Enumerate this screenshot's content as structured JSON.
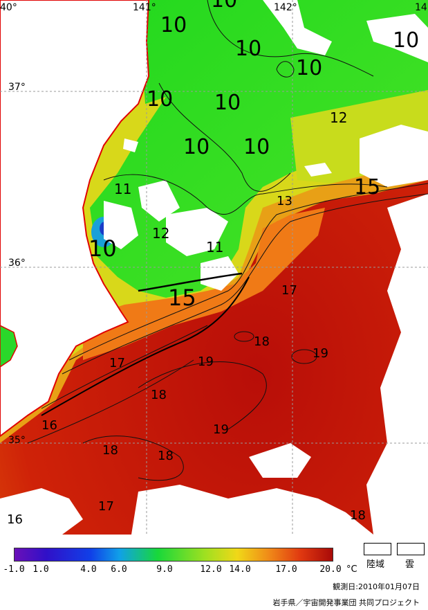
{
  "map": {
    "longitude_labels": [
      "40°",
      "141°",
      "142°",
      "14"
    ],
    "latitude_labels": [
      "37°",
      "36°",
      "35°"
    ],
    "contour_labels": [
      "10",
      "10",
      "10",
      "10",
      "10",
      "10",
      "10",
      "10",
      "10",
      "12",
      "15",
      "13",
      "11",
      "12",
      "11",
      "10",
      "15",
      "17",
      "18",
      "19",
      "19",
      "17",
      "18",
      "19",
      "16",
      "18",
      "18",
      "17",
      "16",
      "18"
    ],
    "colors": {
      "cold": "#1aa7e0",
      "cool": "#2ad82a",
      "mild": "#a8e21a",
      "warm_yellow": "#f0d21a",
      "orange": "#f08a1a",
      "warm_red": "#d8280a",
      "hot": "#b0100a",
      "land": "#ffffff",
      "cloud": "#ffffff",
      "coast": "#e00000",
      "grid": "#9a9a9a"
    }
  },
  "legend": {
    "ticks": [
      "-1.0",
      "1.0",
      "4.0",
      "6.0",
      "9.0",
      "12.0",
      "14.0",
      "17.0",
      "20.0"
    ],
    "unit": "°C",
    "land_label": "陸域",
    "cloud_label": "雲",
    "date": "観測日:2010年01月07日",
    "credit": "岩手県／宇宙開発事業団 共同プロジェクト"
  }
}
